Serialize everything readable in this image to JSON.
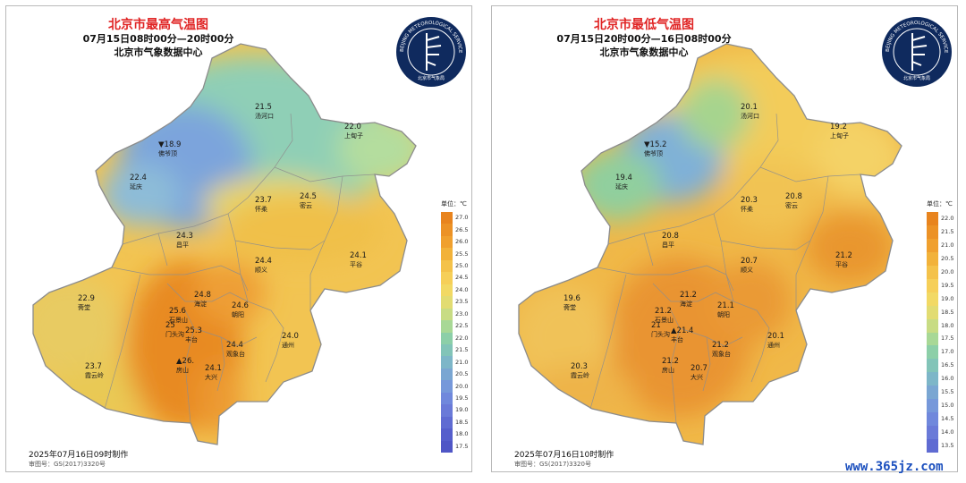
{
  "left": {
    "title": "北京市最高气温图",
    "period": "07月15日08时00分—20时00分",
    "issuer": "北京市气象数据中心",
    "made_at": "2025年07月16日09时制作",
    "review_no": "审图号：GS(2017)3320号",
    "legend": {
      "unit": "单位：℃",
      "ticks": [
        "27.0",
        "26.5",
        "26.0",
        "25.5",
        "25.0",
        "24.5",
        "24.0",
        "23.5",
        "23.0",
        "22.5",
        "22.0",
        "21.5",
        "21.0",
        "20.5",
        "20.0",
        "19.5",
        "19.0",
        "18.5",
        "18.0",
        "17.5"
      ]
    },
    "stations": [
      {
        "value": "21.5",
        "name": "汤河口",
        "marker": ""
      },
      {
        "value": "22.0",
        "name": "上甸子",
        "marker": ""
      },
      {
        "value": "18.9",
        "name": "佛爷顶",
        "marker": "min"
      },
      {
        "value": "22.4",
        "name": "延庆",
        "marker": ""
      },
      {
        "value": "23.7",
        "name": "怀柔",
        "marker": ""
      },
      {
        "value": "24.5",
        "name": "密云",
        "marker": ""
      },
      {
        "value": "24.3",
        "name": "昌平",
        "marker": ""
      },
      {
        "value": "24.4",
        "name": "顺义",
        "marker": ""
      },
      {
        "value": "24.1",
        "name": "平谷",
        "marker": ""
      },
      {
        "value": "22.9",
        "name": "斋堂",
        "marker": ""
      },
      {
        "value": "24.8",
        "name": "海淀",
        "marker": ""
      },
      {
        "value": "25.6",
        "name": "石景山",
        "marker": ""
      },
      {
        "value": "24.6",
        "name": "朝阳",
        "marker": ""
      },
      {
        "value": "25",
        "name": "门头沟",
        "marker": ""
      },
      {
        "value": "25.3",
        "name": "丰台",
        "marker": ""
      },
      {
        "value": "24.4",
        "name": "观象台",
        "marker": ""
      },
      {
        "value": "24.0",
        "name": "通州",
        "marker": ""
      },
      {
        "value": "23.7",
        "name": "霞云岭",
        "marker": ""
      },
      {
        "value": "26.",
        "name": "房山",
        "marker": "max"
      },
      {
        "value": "24.1",
        "name": "大兴",
        "marker": ""
      }
    ]
  },
  "right": {
    "title": "北京市最低气温图",
    "period": "07月15日20时00分—16日08时00分",
    "issuer": "北京市气象数据中心",
    "made_at": "2025年07月16日10时制作",
    "review_no": "审图号：GS(2017)3320号",
    "legend": {
      "unit": "单位：℃",
      "ticks": [
        "22.0",
        "21.5",
        "21.0",
        "20.5",
        "20.0",
        "19.5",
        "19.0",
        "18.5",
        "18.0",
        "17.5",
        "17.0",
        "16.5",
        "16.0",
        "15.5",
        "15.0",
        "14.5",
        "14.0",
        "13.5"
      ]
    },
    "stations": [
      {
        "value": "20.1",
        "name": "汤河口",
        "marker": ""
      },
      {
        "value": "19.2",
        "name": "上甸子",
        "marker": ""
      },
      {
        "value": "15.2",
        "name": "佛爷顶",
        "marker": "min"
      },
      {
        "value": "19.4",
        "name": "延庆",
        "marker": ""
      },
      {
        "value": "20.3",
        "name": "怀柔",
        "marker": ""
      },
      {
        "value": "20.8",
        "name": "密云",
        "marker": ""
      },
      {
        "value": "20.8",
        "name": "昌平",
        "marker": ""
      },
      {
        "value": "20.7",
        "name": "顺义",
        "marker": ""
      },
      {
        "value": "21.2",
        "name": "平谷",
        "marker": ""
      },
      {
        "value": "19.6",
        "name": "斋堂",
        "marker": ""
      },
      {
        "value": "21.2",
        "name": "海淀",
        "marker": ""
      },
      {
        "value": "21.2",
        "name": "石景山",
        "marker": ""
      },
      {
        "value": "21.1",
        "name": "朝阳",
        "marker": ""
      },
      {
        "value": "21",
        "name": "门头沟",
        "marker": ""
      },
      {
        "value": "21.4",
        "name": "丰台",
        "marker": "max"
      },
      {
        "value": "21.2",
        "name": "观象台",
        "marker": ""
      },
      {
        "value": "20.1",
        "name": "通州",
        "marker": ""
      },
      {
        "value": "20.3",
        "name": "霞云岭",
        "marker": ""
      },
      {
        "value": "21.2",
        "name": "房山",
        "marker": ""
      },
      {
        "value": "20.7",
        "name": "大兴",
        "marker": ""
      }
    ]
  },
  "logo": {
    "text": "BEIJING METEOROLOGICAL SERVICE",
    "cn": "北京市气象局"
  },
  "colors": {
    "hot": "#e8841e",
    "warm": "#f3c24e",
    "cool": "#9fd3a8",
    "cold": "#6f9ad8",
    "title": "#e02424"
  },
  "watermark": "www.365jz.com"
}
